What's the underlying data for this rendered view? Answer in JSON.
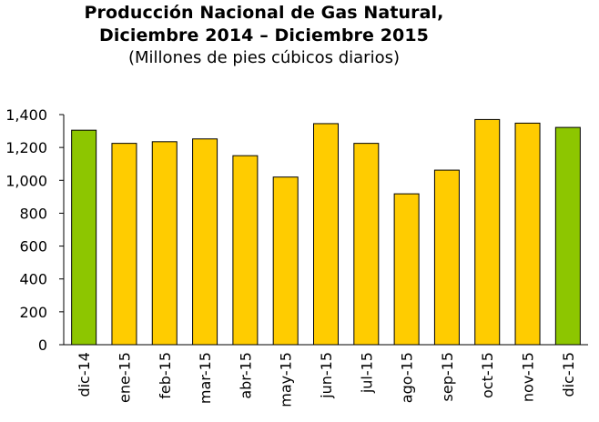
{
  "chart_data": {
    "type": "bar",
    "title_line1": "Producción Nacional de Gas Natural,",
    "title_line2": "Diciembre 2014 – Diciembre 2015",
    "subtitle": "(Millones de pies cúbicos diarios)",
    "xlabel": "",
    "ylabel": "",
    "ylim": [
      0,
      1400
    ],
    "yticks": [
      "0",
      "200",
      "400",
      "600",
      "800",
      "1,000",
      "1,200",
      "1,400"
    ],
    "grid": false,
    "legend": "none",
    "categories": [
      "dic-14",
      "ene-15",
      "feb-15",
      "mar-15",
      "abr-15",
      "may-15",
      "jun-15",
      "jul-15",
      "ago-15",
      "sep-15",
      "oct-15",
      "nov-15",
      "dic-15"
    ],
    "series": [
      {
        "values": [
          1305,
          1225,
          1235,
          1252,
          1150,
          1020,
          1345,
          1225,
          918,
          1062,
          1370,
          1348,
          1322
        ]
      }
    ],
    "colors": {
      "highlight": "#8dc600",
      "default": "#ffcc00",
      "highlight_indices": [
        0,
        12
      ],
      "bar_outline": "#000000"
    }
  }
}
